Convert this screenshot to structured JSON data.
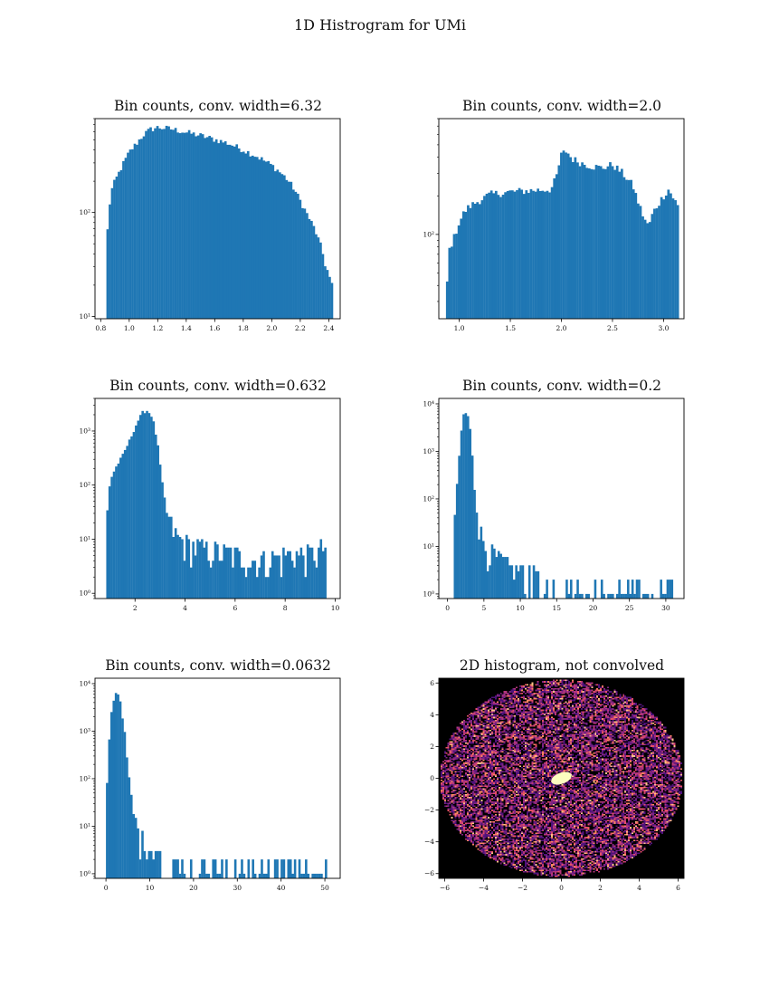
{
  "figure": {
    "title": "1D Histrogram for UMi"
  },
  "colors": {
    "bars": "#1f77b4",
    "image_background": "#000000",
    "core": "#fcfdbf"
  },
  "chart_data": [
    {
      "type": "bar",
      "title": "Bin counts, conv. width=6.32",
      "yscale": "log",
      "xlim": [
        0.76,
        2.48
      ],
      "ylim": [
        9.5,
        800
      ],
      "x_ticks": [
        0.8,
        1.0,
        1.2,
        1.4,
        1.6,
        1.8,
        2.0,
        2.2,
        2.4
      ],
      "x_tick_labels": [
        "0.8",
        "1.0",
        "1.2",
        "1.4",
        "1.6",
        "1.8",
        "2.0",
        "2.2",
        "2.4"
      ],
      "y_ticks": [
        10,
        100
      ],
      "y_tick_labels": [
        "10¹",
        "10²"
      ],
      "bin_range": [
        0.84,
        2.43
      ],
      "bin_count": 100,
      "anchors": [
        [
          0.84,
          50
        ],
        [
          0.87,
          155
        ],
        [
          0.9,
          200
        ],
        [
          0.95,
          280
        ],
        [
          1.0,
          380
        ],
        [
          1.05,
          460
        ],
        [
          1.1,
          560
        ],
        [
          1.15,
          630
        ],
        [
          1.2,
          660
        ],
        [
          1.3,
          635
        ],
        [
          1.4,
          590
        ],
        [
          1.5,
          550
        ],
        [
          1.6,
          505
        ],
        [
          1.7,
          460
        ],
        [
          1.8,
          400
        ],
        [
          1.9,
          345
        ],
        [
          2.0,
          285
        ],
        [
          2.05,
          250
        ],
        [
          2.1,
          215
        ],
        [
          2.15,
          175
        ],
        [
          2.2,
          130
        ],
        [
          2.25,
          95
        ],
        [
          2.3,
          70
        ],
        [
          2.35,
          45
        ],
        [
          2.4,
          22
        ],
        [
          2.43,
          12
        ]
      ]
    },
    {
      "type": "bar",
      "title": "Bin counts, conv. width=2.0",
      "yscale": "log",
      "xlim": [
        0.8,
        3.2
      ],
      "ylim": [
        22,
        800
      ],
      "x_ticks": [
        1.0,
        1.5,
        2.0,
        2.5,
        3.0
      ],
      "x_tick_labels": [
        "1.0",
        "1.5",
        "2.0",
        "2.5",
        "3.0"
      ],
      "y_ticks": [
        100
      ],
      "y_tick_labels": [
        "10²"
      ],
      "bin_range": [
        0.87,
        3.15
      ],
      "bin_count": 100,
      "anchors": [
        [
          0.87,
          30
        ],
        [
          0.9,
          75
        ],
        [
          0.95,
          95
        ],
        [
          1.0,
          125
        ],
        [
          1.05,
          150
        ],
        [
          1.1,
          165
        ],
        [
          1.2,
          185
        ],
        [
          1.3,
          205
        ],
        [
          1.5,
          215
        ],
        [
          1.7,
          220
        ],
        [
          1.9,
          225
        ],
        [
          1.95,
          280
        ],
        [
          2.0,
          420
        ],
        [
          2.05,
          450
        ],
        [
          2.1,
          390
        ],
        [
          2.2,
          360
        ],
        [
          2.3,
          340
        ],
        [
          2.4,
          330
        ],
        [
          2.5,
          350
        ],
        [
          2.6,
          300
        ],
        [
          2.7,
          240
        ],
        [
          2.75,
          180
        ],
        [
          2.8,
          140
        ],
        [
          2.85,
          115
        ],
        [
          2.9,
          150
        ],
        [
          3.0,
          200
        ],
        [
          3.05,
          225
        ],
        [
          3.1,
          190
        ],
        [
          3.15,
          160
        ]
      ]
    },
    {
      "type": "bar",
      "title": "Bin counts, conv. width=0.632",
      "yscale": "log",
      "xlim": [
        0.4,
        10.2
      ],
      "ylim": [
        0.8,
        4000
      ],
      "x_ticks": [
        2,
        4,
        6,
        8,
        10
      ],
      "x_tick_labels": [
        "2",
        "4",
        "6",
        "8",
        "10"
      ],
      "y_ticks": [
        1,
        10,
        100,
        1000
      ],
      "y_tick_labels": [
        "10⁰",
        "10¹",
        "10²",
        "10³"
      ],
      "bin_range": [
        0.85,
        9.65
      ],
      "bin_count": 100,
      "anchors": [
        [
          0.85,
          20
        ],
        [
          1.0,
          120
        ],
        [
          1.2,
          200
        ],
        [
          1.5,
          350
        ],
        [
          1.8,
          700
        ],
        [
          2.1,
          1500
        ],
        [
          2.3,
          2200
        ],
        [
          2.5,
          2400
        ],
        [
          2.7,
          1800
        ],
        [
          2.9,
          600
        ],
        [
          3.1,
          100
        ],
        [
          3.3,
          25
        ],
        [
          3.6,
          12
        ],
        [
          4.0,
          8
        ],
        [
          5.0,
          6
        ],
        [
          6.0,
          5
        ],
        [
          7.0,
          4
        ],
        [
          8.0,
          5
        ],
        [
          9.0,
          5
        ],
        [
          9.65,
          7
        ]
      ]
    },
    {
      "type": "bar",
      "title": "Bin counts, conv. width=0.2",
      "yscale": "log",
      "xlim": [
        -1.2,
        32.5
      ],
      "ylim": [
        0.8,
        13000
      ],
      "x_ticks": [
        0,
        5,
        10,
        15,
        20,
        25,
        30
      ],
      "x_tick_labels": [
        "0",
        "5",
        "10",
        "15",
        "20",
        "25",
        "30"
      ],
      "y_ticks": [
        1,
        10,
        100,
        1000,
        10000
      ],
      "y_tick_labels": [
        "10⁰",
        "10¹",
        "10²",
        "10³",
        "10⁴"
      ],
      "bin_range": [
        0.85,
        31.0
      ],
      "bin_count": 100,
      "anchors": [
        [
          0.85,
          20
        ],
        [
          1.3,
          200
        ],
        [
          1.8,
          2000
        ],
        [
          2.2,
          6000
        ],
        [
          2.6,
          6500
        ],
        [
          3.0,
          4500
        ],
        [
          3.4,
          900
        ],
        [
          3.8,
          100
        ],
        [
          4.3,
          25
        ],
        [
          5.0,
          12
        ],
        [
          6.0,
          7
        ],
        [
          8.0,
          4
        ],
        [
          10.0,
          3
        ],
        [
          15.0,
          2
        ],
        [
          20.0,
          1.5
        ],
        [
          25.0,
          1.3
        ],
        [
          31.0,
          1.3
        ]
      ]
    },
    {
      "type": "bar",
      "title": "Bin counts, conv. width=0.0632",
      "yscale": "log",
      "xlim": [
        -2.5,
        53.5
      ],
      "ylim": [
        0.8,
        13000
      ],
      "x_ticks": [
        0,
        10,
        20,
        30,
        40,
        50
      ],
      "x_tick_labels": [
        "0",
        "10",
        "20",
        "30",
        "40",
        "50"
      ],
      "y_ticks": [
        1,
        10,
        100,
        1000,
        10000
      ],
      "y_tick_labels": [
        "10⁰",
        "10¹",
        "10²",
        "10³",
        "10⁴"
      ],
      "bin_range": [
        0.0,
        50.5
      ],
      "bin_count": 100,
      "anchors": [
        [
          0.0,
          20
        ],
        [
          0.5,
          300
        ],
        [
          1.0,
          1500
        ],
        [
          1.5,
          3800
        ],
        [
          2.0,
          5500
        ],
        [
          2.5,
          7000
        ],
        [
          3.0,
          5500
        ],
        [
          3.5,
          3500
        ],
        [
          4.0,
          1300
        ],
        [
          4.5,
          700
        ],
        [
          5.0,
          150
        ],
        [
          5.5,
          80
        ],
        [
          6.0,
          30
        ],
        [
          6.5,
          15
        ],
        [
          7.0,
          10
        ],
        [
          8.0,
          5
        ],
        [
          10.0,
          4
        ],
        [
          15.0,
          2
        ],
        [
          20.0,
          1.8
        ],
        [
          30.0,
          1.4
        ],
        [
          40.0,
          1.3
        ],
        [
          50.5,
          1.3
        ]
      ]
    },
    {
      "type": "heatmap",
      "title": "2D histogram, not convolved",
      "xlim": [
        -6.3,
        6.3
      ],
      "ylim": [
        -6.3,
        6.3
      ],
      "x_ticks": [
        -6,
        -4,
        -2,
        0,
        2,
        4,
        6
      ],
      "x_tick_labels": [
        "−6",
        "−4",
        "−2",
        "0",
        "2",
        "4",
        "6"
      ],
      "y_ticks": [
        -6,
        -4,
        -2,
        0,
        2,
        4,
        6
      ],
      "y_tick_labels": [
        "−6",
        "−4",
        "−2",
        "0",
        "2",
        "4",
        "6"
      ],
      "colormap": "magma",
      "ellipse": {
        "cx": 0,
        "cy": 0,
        "rx": 6.25,
        "ry": 6.2
      },
      "core": {
        "cx": 0,
        "cy": 0,
        "rx": 0.55,
        "ry": 0.35,
        "angle": -20
      },
      "grid_cells": 140
    }
  ]
}
